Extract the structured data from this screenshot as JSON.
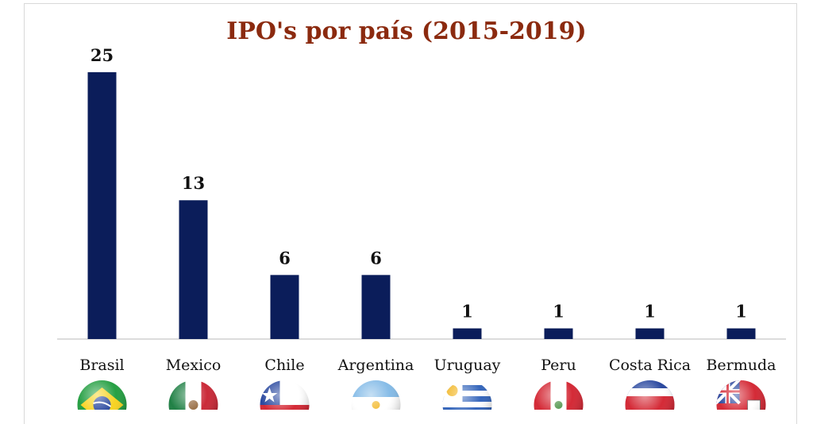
{
  "chart_data": {
    "type": "bar",
    "title": "IPO's por país (2015-2019)",
    "categories": [
      "Brasil",
      "Mexico",
      "Chile",
      "Argentina",
      "Uruguay",
      "Peru",
      "Costa Rica",
      "Bermuda"
    ],
    "values": [
      25,
      13,
      6,
      6,
      1,
      1,
      1,
      1
    ],
    "ylim": [
      0,
      27
    ],
    "grid": false,
    "legend": "none",
    "bar_color": "#0b1d5a",
    "title_color": "#8b2a0f"
  },
  "flags": [
    "brazil-flag-icon",
    "mexico-flag-icon",
    "chile-flag-icon",
    "argentina-flag-icon",
    "uruguay-flag-icon",
    "peru-flag-icon",
    "costa-rica-flag-icon",
    "bermuda-flag-icon"
  ]
}
